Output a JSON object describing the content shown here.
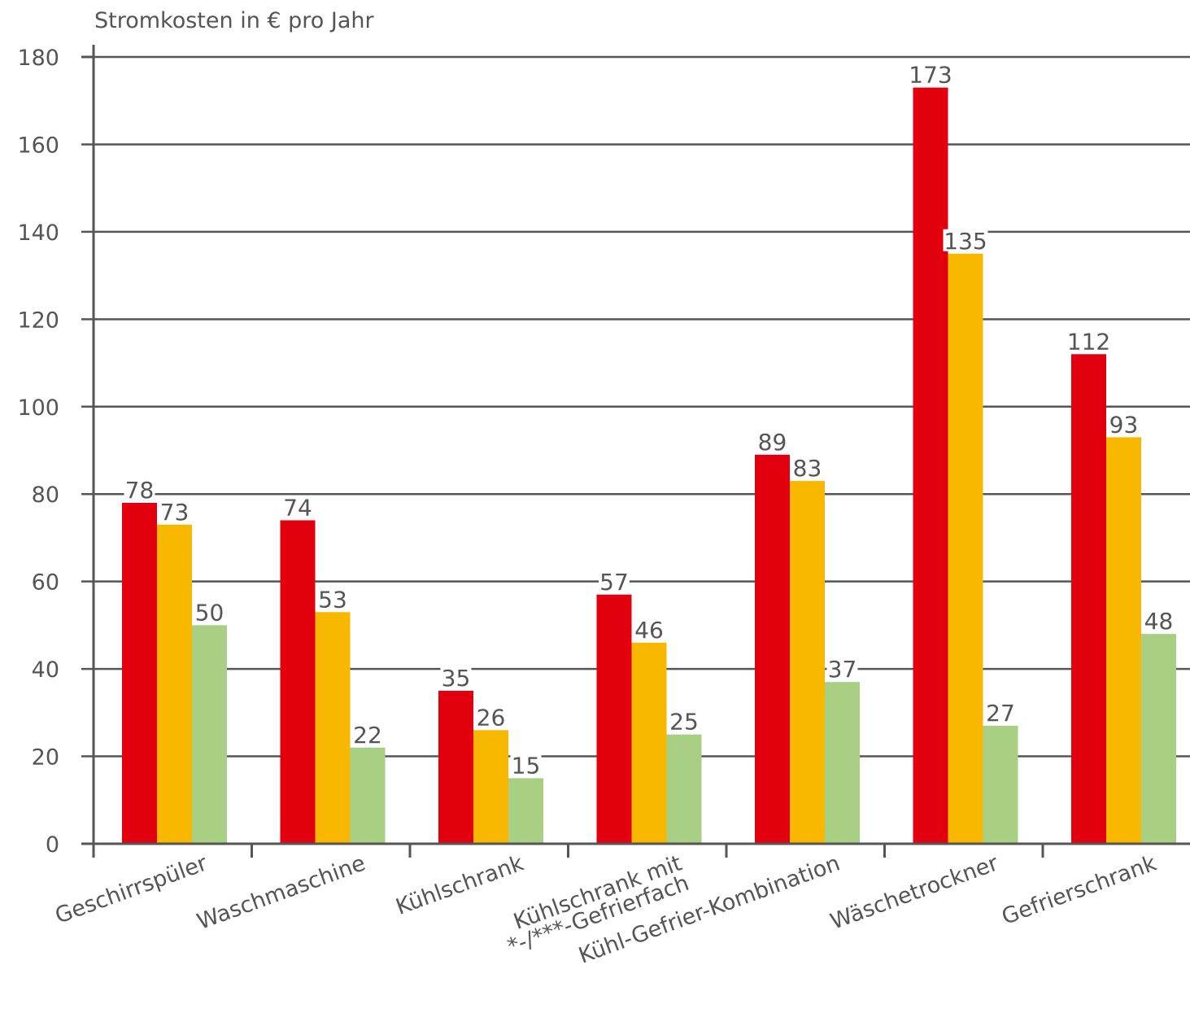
{
  "chart_data": {
    "type": "bar",
    "title": "",
    "ylabel": "Stromkosten in € pro Jahr",
    "xlabel": "",
    "ylim": [
      0,
      180
    ],
    "yticks": [
      0,
      20,
      40,
      60,
      80,
      100,
      120,
      140,
      160,
      180
    ],
    "grid": true,
    "categories": [
      [
        "Geschirrspüler"
      ],
      [
        "Waschmaschine"
      ],
      [
        "Kühlschrank"
      ],
      [
        "Kühlschrank mit",
        "*-/***-Gefrierfach"
      ],
      [
        "Kühl-Gefrier-Kombination"
      ],
      [
        "Wäschetrockner"
      ],
      [
        "Gefrierschrank"
      ]
    ],
    "series": [
      {
        "values": [
          78,
          74,
          35,
          57,
          89,
          173,
          112
        ],
        "color": "#e2000f"
      },
      {
        "values": [
          73,
          53,
          26,
          46,
          83,
          135,
          93
        ],
        "color": "#f9b800"
      },
      {
        "values": [
          50,
          22,
          15,
          25,
          37,
          27,
          48
        ],
        "color": "#a8cf83"
      }
    ]
  }
}
